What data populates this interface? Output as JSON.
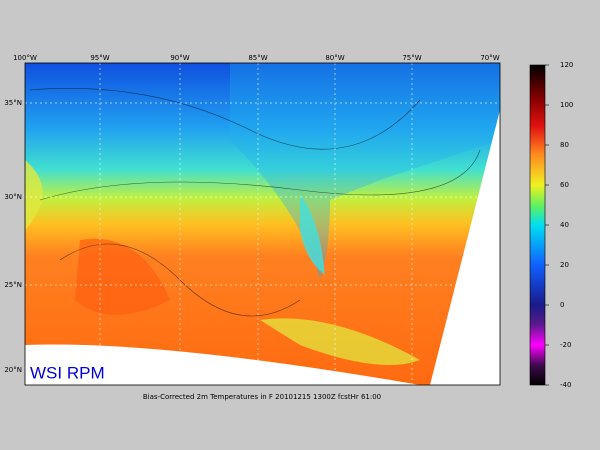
{
  "map": {
    "lon_labels": [
      "100°W",
      "95°W",
      "90°W",
      "85°W",
      "80°W",
      "75°W",
      "70°W"
    ],
    "lat_labels": [
      "35°N",
      "30°N",
      "25°N",
      "20°N"
    ],
    "brand": "WSI RPM",
    "caption": "Bias-Corrected 2m Temperatures in F 20101215 1300Z fcstHr 61:00"
  },
  "colorbar": {
    "lim": [
      -40,
      120
    ],
    "ticks": [
      120,
      100,
      80,
      60,
      40,
      20,
      0,
      -20,
      -40
    ]
  }
}
